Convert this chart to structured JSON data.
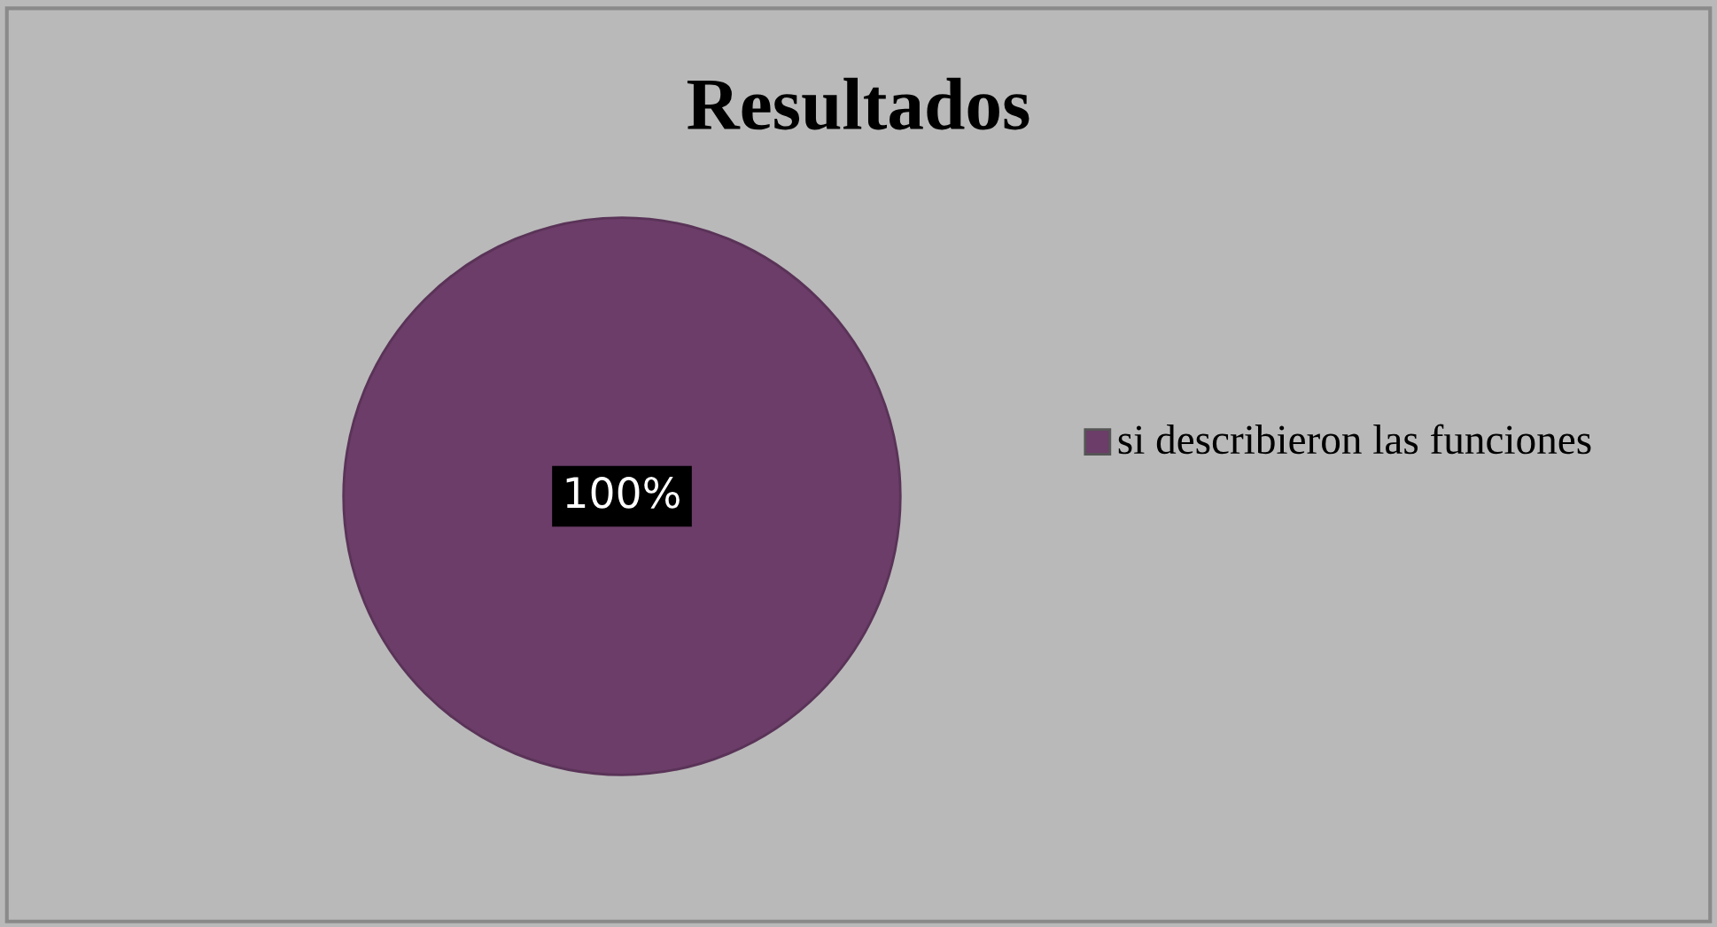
{
  "chart_data": {
    "type": "pie",
    "title": "Resultados",
    "categories": [
      "si describieron las funciones"
    ],
    "values": [
      100
    ],
    "colors": [
      "#6b3d68"
    ],
    "value_labels": [
      "100%"
    ],
    "legend": "right"
  }
}
